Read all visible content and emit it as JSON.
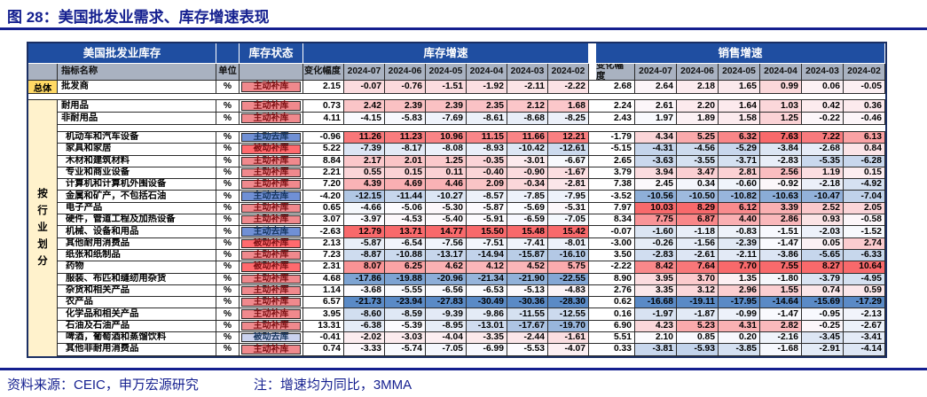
{
  "title": "图 28：美国批发业需求、库存增速表现",
  "source_note": "资料来源：CEIC，申万宏源研究",
  "note": "注：增速均为同比，3MMA",
  "table": {
    "corner_header": "美国批发业库存",
    "status_header": "库存状态",
    "inventory_header": "库存增速",
    "sales_header": "销售增速",
    "name_header": "指标名称",
    "unit_header": "单位",
    "change_header": "变化幅度",
    "months": [
      "2024-07",
      "2024-06",
      "2024-05",
      "2024-04",
      "2024-03",
      "2024-02"
    ],
    "group_total": "总体",
    "group_industry": "按行业划分",
    "rows": [
      {
        "group": "total",
        "name": "批发商",
        "unit": "%",
        "status": "主动补库",
        "inv": [
          2.15,
          -0.07,
          -0.76,
          -1.51,
          -1.92,
          -2.11,
          -2.22
        ],
        "sales": [
          2.68,
          2.64,
          2.18,
          1.65,
          0.99,
          0.06,
          -0.05
        ]
      },
      {
        "sep": 7
      },
      {
        "group": "industry",
        "name": "耐用品",
        "unit": "%",
        "status": "主动补库",
        "inv": [
          0.73,
          2.42,
          2.39,
          2.39,
          2.35,
          2.12,
          1.68
        ],
        "sales": [
          2.24,
          2.61,
          2.2,
          1.64,
          1.03,
          0.42,
          0.36
        ]
      },
      {
        "group": "industry",
        "name": "非耐用品",
        "unit": "%",
        "status": "主动补库",
        "inv": [
          4.11,
          -4.15,
          -5.83,
          -7.69,
          -8.61,
          -8.68,
          -8.25
        ],
        "sales": [
          2.43,
          1.97,
          1.89,
          1.58,
          1.25,
          -0.22,
          -0.46
        ]
      },
      {
        "sep": 8
      },
      {
        "group": "industry",
        "ind": true,
        "name": "机动车和汽车设备",
        "unit": "%",
        "status": "主动去库",
        "inv": [
          -0.96,
          11.26,
          11.23,
          10.96,
          11.15,
          11.66,
          12.21
        ],
        "sales": [
          -1.79,
          4.34,
          5.25,
          6.32,
          7.63,
          7.22,
          6.13
        ]
      },
      {
        "group": "industry",
        "ind": true,
        "name": "家具和家居",
        "unit": "%",
        "status": "被动补库",
        "inv": [
          5.22,
          -7.39,
          -8.17,
          -8.08,
          -8.93,
          -10.42,
          -12.61
        ],
        "sales": [
          -5.15,
          -4.31,
          -4.56,
          -5.29,
          -3.84,
          -2.68,
          0.84
        ]
      },
      {
        "group": "industry",
        "ind": true,
        "name": "木材和建筑材料",
        "unit": "%",
        "status": "主动补库",
        "inv": [
          8.84,
          2.17,
          2.01,
          1.25,
          -0.35,
          -3.01,
          -6.67
        ],
        "sales": [
          2.65,
          -3.63,
          -3.55,
          -3.71,
          -2.83,
          -5.35,
          -6.28
        ]
      },
      {
        "group": "industry",
        "ind": true,
        "name": "专业和商业设备",
        "unit": "%",
        "status": "主动补库",
        "inv": [
          2.21,
          0.55,
          0.15,
          0.11,
          -0.4,
          -0.9,
          -1.67
        ],
        "sales": [
          3.79,
          3.94,
          3.47,
          2.81,
          2.56,
          1.19,
          0.15
        ]
      },
      {
        "group": "industry",
        "ind": true,
        "name": "计算机和计算机外围设备",
        "unit": "%",
        "status": "主动补库",
        "inv": [
          7.2,
          4.39,
          4.69,
          4.46,
          2.09,
          -0.34,
          -2.81
        ],
        "sales": [
          7.38,
          2.45,
          0.34,
          -0.6,
          -0.92,
          -2.18,
          -4.92
        ]
      },
      {
        "group": "industry",
        "ind": true,
        "name": "金属和矿产，不包括石油",
        "unit": "%",
        "status": "主动去库",
        "inv": [
          -4.2,
          -12.15,
          -11.44,
          -10.27,
          -8.57,
          -7.85,
          -7.95
        ],
        "sales": [
          -3.52,
          -10.56,
          -10.5,
          -10.82,
          -10.63,
          -10.47,
          -7.04
        ]
      },
      {
        "group": "industry",
        "ind": true,
        "name": "电子产品",
        "unit": "%",
        "status": "主动补库",
        "inv": [
          0.65,
          -4.66,
          -5.06,
          -5.3,
          -5.87,
          -5.69,
          -5.31
        ],
        "sales": [
          7.97,
          10.03,
          8.29,
          6.12,
          3.39,
          2.52,
          2.05
        ]
      },
      {
        "group": "industry",
        "ind": true,
        "name": "硬件，管道工程及加热设备",
        "unit": "%",
        "status": "主动补库",
        "inv": [
          3.07,
          -3.97,
          -4.53,
          -5.4,
          -5.91,
          -6.59,
          -7.05
        ],
        "sales": [
          8.34,
          7.75,
          6.87,
          4.4,
          2.86,
          0.93,
          -0.58
        ]
      },
      {
        "group": "industry",
        "ind": true,
        "name": "机械、设备和用品",
        "unit": "%",
        "status": "主动去库",
        "inv": [
          -2.63,
          12.79,
          13.71,
          14.77,
          15.5,
          15.48,
          15.42
        ],
        "sales": [
          -0.07,
          -1.6,
          -1.18,
          -0.83,
          -1.51,
          -2.03,
          -1.52
        ]
      },
      {
        "group": "industry",
        "ind": true,
        "name": "其他耐用消费品",
        "unit": "%",
        "status": "被动补库",
        "inv": [
          2.13,
          -5.87,
          -6.54,
          -7.56,
          -7.51,
          -7.41,
          -8.01
        ],
        "sales": [
          -3.0,
          -0.26,
          -1.56,
          -2.39,
          -1.47,
          0.05,
          2.74
        ]
      },
      {
        "group": "industry",
        "ind": true,
        "name": "纸张和纸制品",
        "unit": "%",
        "status": "主动补库",
        "inv": [
          7.23,
          -8.87,
          -10.88,
          -13.17,
          -14.94,
          -15.87,
          -16.1
        ],
        "sales": [
          3.5,
          -2.83,
          -2.61,
          -2.11,
          -3.86,
          -5.65,
          -6.33
        ]
      },
      {
        "group": "industry",
        "ind": true,
        "name": "药物",
        "unit": "%",
        "status": "被动补库",
        "inv": [
          2.31,
          8.07,
          6.25,
          4.62,
          4.12,
          4.52,
          5.75
        ],
        "sales": [
          -2.22,
          8.42,
          7.64,
          7.7,
          7.55,
          8.27,
          10.64
        ]
      },
      {
        "group": "industry",
        "ind": true,
        "name": "服装、布匹和缝纫用杂货",
        "unit": "%",
        "status": "主动补库",
        "inv": [
          4.68,
          -17.86,
          -19.88,
          -20.96,
          -21.34,
          -21.9,
          -22.55
        ],
        "sales": [
          8.9,
          3.95,
          3.7,
          1.35,
          -1.8,
          -3.79,
          -4.95
        ]
      },
      {
        "group": "industry",
        "ind": true,
        "name": "杂货和相关产品",
        "unit": "%",
        "status": "主动补库",
        "inv": [
          1.14,
          -3.68,
          -5.55,
          -6.56,
          -6.53,
          -5.13,
          -4.83
        ],
        "sales": [
          2.76,
          3.35,
          3.12,
          2.96,
          1.55,
          0.74,
          0.59
        ]
      },
      {
        "group": "industry",
        "ind": true,
        "name": "农产品",
        "unit": "%",
        "status": "主动补库",
        "inv": [
          6.57,
          -21.73,
          -23.94,
          -27.83,
          -30.49,
          -30.36,
          -28.3
        ],
        "sales": [
          0.62,
          -16.68,
          -19.11,
          -17.95,
          -14.64,
          -15.69,
          -17.29
        ]
      },
      {
        "group": "industry",
        "ind": true,
        "name": "化学品和相关产品",
        "unit": "%",
        "status": "主动补库",
        "inv": [
          3.95,
          -8.6,
          -8.59,
          -9.39,
          -9.86,
          -11.55,
          -12.55
        ],
        "sales": [
          0.16,
          -1.97,
          -1.87,
          -0.99,
          -1.47,
          -0.95,
          -2.13
        ]
      },
      {
        "group": "industry",
        "ind": true,
        "name": "石油及石油产品",
        "unit": "%",
        "status": "主动补库",
        "inv": [
          13.31,
          -6.38,
          -5.39,
          -8.95,
          -13.01,
          -17.67,
          -19.7
        ],
        "sales": [
          6.9,
          4.23,
          5.23,
          4.31,
          2.82,
          -0.25,
          -2.67
        ]
      },
      {
        "group": "industry",
        "ind": true,
        "name": "啤酒，葡萄酒和蒸馏饮料",
        "unit": "%",
        "status": "被动去库",
        "inv": [
          -0.41,
          -2.02,
          -3.03,
          -4.04,
          -3.35,
          -2.44,
          -1.61
        ],
        "sales": [
          5.51,
          2.1,
          0.85,
          0.2,
          -2.16,
          -3.45,
          -3.41
        ]
      },
      {
        "group": "industry",
        "ind": true,
        "name": "其他非耐用消费品",
        "unit": "%",
        "status": "主动补库",
        "inv": [
          0.74,
          -3.33,
          -5.74,
          -7.05,
          -6.99,
          -5.53,
          -4.07
        ],
        "sales": [
          0.33,
          -3.81,
          -5.93,
          -3.85,
          -1.68,
          -2.91,
          -4.14
        ]
      }
    ]
  },
  "colors": {
    "title_navy": "#141F8F",
    "header_blue": "#1F4EA1",
    "header_gray": "#A9B2C1",
    "group_total_bg": "#FFD965",
    "group_industry_bg": "#FFF2CC",
    "heat_red": "#F8696B",
    "heat_mid": "#FCFCFF",
    "heat_blue": "#5A8AC6",
    "status_styles": {
      "主动补库": {
        "bg": "#F0898D",
        "fg": "#7E1013"
      },
      "被动补库": {
        "bg": "#FF6A6E",
        "fg": "#7E1013"
      },
      "主动去库": {
        "bg": "#7090D5",
        "fg": "#16355E"
      },
      "被动去库": {
        "bg": "#CBD2EF",
        "fg": "#16355E"
      }
    }
  }
}
